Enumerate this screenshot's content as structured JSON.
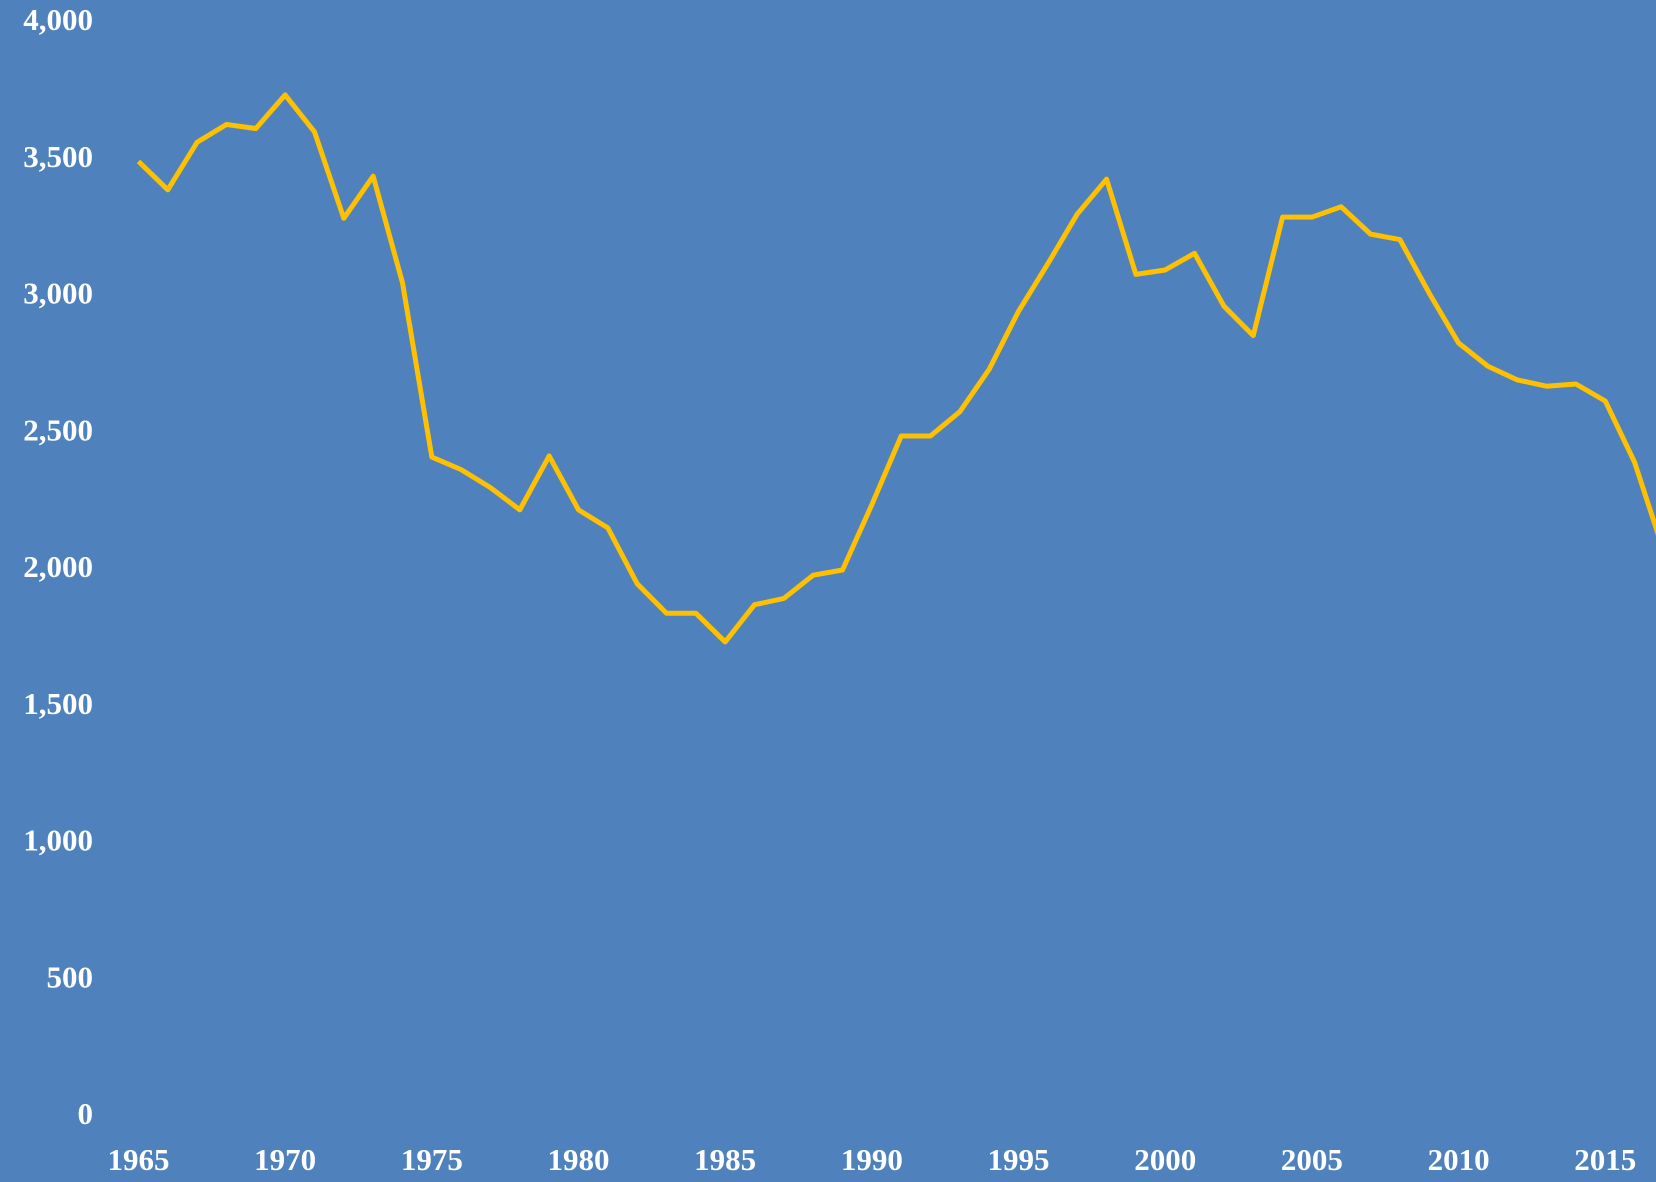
{
  "chart_data": {
    "type": "line",
    "x": [
      1965,
      1966,
      1967,
      1968,
      1969,
      1970,
      1971,
      1972,
      1973,
      1974,
      1975,
      1976,
      1977,
      1978,
      1979,
      1980,
      1981,
      1982,
      1983,
      1984,
      1985,
      1986,
      1987,
      1988,
      1989,
      1990,
      1991,
      1992,
      1993,
      1994,
      1995,
      1996,
      1997,
      1998,
      1999,
      2000,
      2001,
      2002,
      2003,
      2004,
      2005,
      2006,
      2007,
      2008,
      2009,
      2010,
      2011,
      2012,
      2013,
      2014,
      2015,
      2016,
      2017
    ],
    "values": [
      3494,
      3390,
      3564,
      3629,
      3614,
      3737,
      3602,
      3286,
      3440,
      3050,
      2413,
      2367,
      2301,
      2220,
      2417,
      2220,
      2154,
      1950,
      1842,
      1842,
      1737,
      1873,
      1896,
      1981,
      2000,
      2239,
      2490,
      2490,
      2579,
      2734,
      2946,
      3120,
      3301,
      3429,
      3081,
      3097,
      3158,
      2965,
      2857,
      3290,
      3290,
      3328,
      3228,
      3208,
      3012,
      2830,
      2745,
      2695,
      2672,
      2680,
      2618,
      2394,
      2066
    ],
    "color": "#ffc000",
    "xlim": [
      1960.28,
      2016.73
    ],
    "xticks": [
      1965,
      1970,
      1975,
      1980,
      1985,
      1990,
      1995,
      2000,
      2005,
      2010,
      2015
    ],
    "ylim": [
      0,
      4000
    ],
    "yticks": [
      0,
      500,
      {
        "value": 1000,
        "label": "1,000"
      },
      {
        "value": 1500,
        "label": "1,500"
      },
      {
        "value": 2000,
        "label": "2,000"
      },
      {
        "value": 2500,
        "label": "2,500"
      },
      {
        "value": 3000,
        "label": "3,000"
      },
      {
        "value": 3500,
        "label": "3,500"
      },
      {
        "value": 4000,
        "label": "4,000"
      }
    ],
    "grid": false
  }
}
